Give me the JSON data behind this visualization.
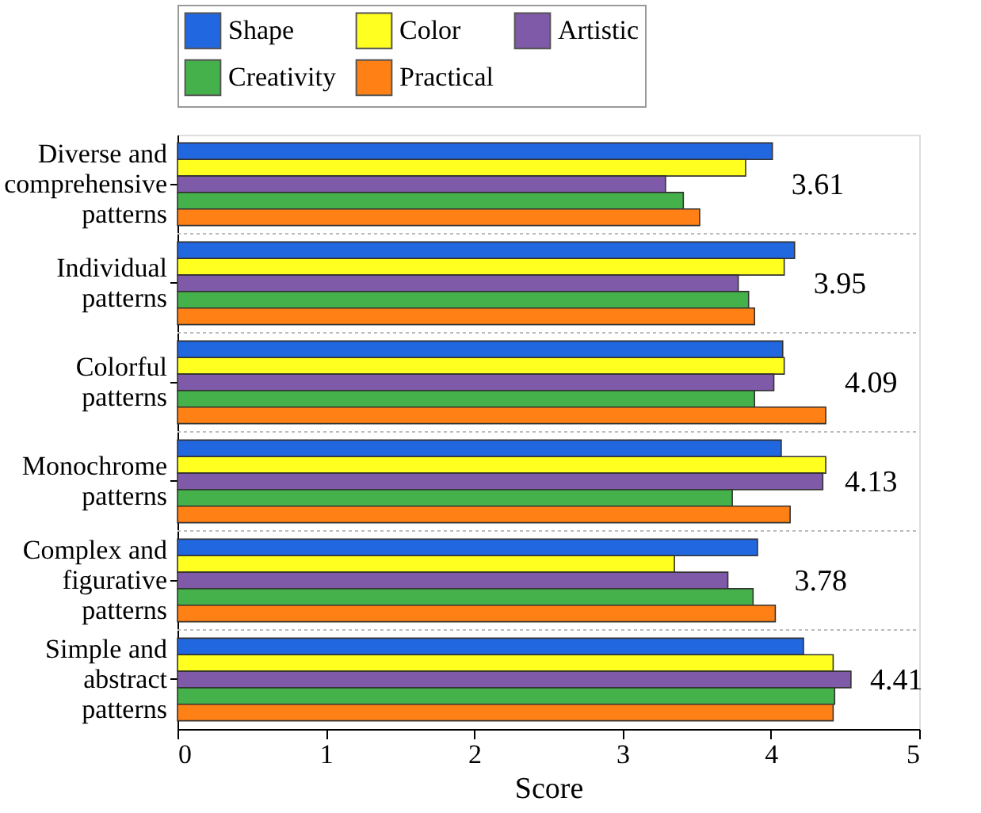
{
  "chart_data": {
    "type": "bar",
    "orientation": "horizontal",
    "xlabel": "Score",
    "categories": [
      "Diverse and\ncomprehensive\npatterns",
      "Individual\npatterns",
      "Colorful\npatterns",
      "Monochrome\npatterns",
      "Complex and\nfigurative\npatterns",
      "Simple and\nabstract\npatterns"
    ],
    "series": [
      {
        "name": "Shape",
        "color": "#2167e0",
        "values": [
          4.01,
          4.16,
          4.08,
          4.07,
          3.91,
          4.22
        ]
      },
      {
        "name": "Color",
        "color": "#ffff20",
        "values": [
          3.83,
          4.09,
          4.09,
          4.37,
          3.35,
          4.42
        ]
      },
      {
        "name": "Artistic",
        "color": "#7f5aa8",
        "values": [
          3.29,
          3.78,
          4.02,
          4.35,
          3.71,
          4.54
        ]
      },
      {
        "name": "Creativity",
        "color": "#45b14a",
        "values": [
          3.41,
          3.85,
          3.89,
          3.74,
          3.88,
          4.43
        ]
      },
      {
        "name": "Practical",
        "color": "#ff8015",
        "values": [
          3.52,
          3.89,
          4.37,
          4.13,
          4.03,
          4.42
        ]
      }
    ],
    "xlim": [
      0,
      5
    ],
    "xticks": [
      0,
      1,
      2,
      3,
      4,
      5
    ],
    "annotations": [
      "3.61",
      "3.95",
      "4.09",
      "4.13",
      "3.78",
      "4.41"
    ],
    "grid": "y",
    "legend": "top"
  }
}
